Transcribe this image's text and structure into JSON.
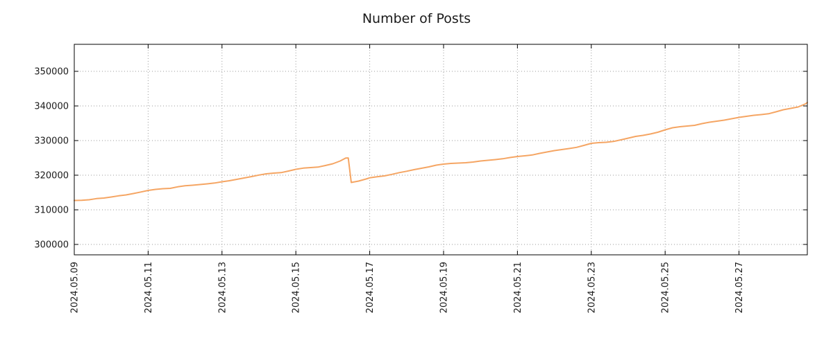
{
  "chart_data": {
    "type": "line",
    "title": "Number of Posts",
    "xlabel": "",
    "ylabel": "",
    "legend": null,
    "grid": "dotted",
    "line_color": "#f5a563",
    "axis_color": "#000000",
    "grid_color": "#9a9a9a",
    "x_unit": "days since 2024.05.09",
    "xlim": [
      0,
      19.85
    ],
    "ylim": [
      297000,
      357800
    ],
    "x_ticks": [
      {
        "pos": 0,
        "label": "2024.05.09"
      },
      {
        "pos": 2,
        "label": "2024.05.11"
      },
      {
        "pos": 4,
        "label": "2024.05.13"
      },
      {
        "pos": 6,
        "label": "2024.05.15"
      },
      {
        "pos": 8,
        "label": "2024.05.17"
      },
      {
        "pos": 10,
        "label": "2024.05.19"
      },
      {
        "pos": 12,
        "label": "2024.05.21"
      },
      {
        "pos": 14,
        "label": "2024.05.23"
      },
      {
        "pos": 16,
        "label": "2024.05.25"
      },
      {
        "pos": 18,
        "label": "2024.05.27"
      }
    ],
    "y_ticks": [
      300000,
      310000,
      320000,
      330000,
      340000,
      350000
    ],
    "points": [
      [
        0.0,
        312700
      ],
      [
        0.2,
        312750
      ],
      [
        0.4,
        312900
      ],
      [
        0.6,
        313250
      ],
      [
        0.8,
        313400
      ],
      [
        1.0,
        313700
      ],
      [
        1.2,
        314050
      ],
      [
        1.4,
        314300
      ],
      [
        1.6,
        314700
      ],
      [
        1.8,
        315150
      ],
      [
        2.0,
        315600
      ],
      [
        2.2,
        315900
      ],
      [
        2.4,
        316100
      ],
      [
        2.6,
        316200
      ],
      [
        2.8,
        316650
      ],
      [
        3.0,
        316950
      ],
      [
        3.2,
        317100
      ],
      [
        3.4,
        317300
      ],
      [
        3.6,
        317500
      ],
      [
        3.8,
        317750
      ],
      [
        4.0,
        318100
      ],
      [
        4.2,
        318400
      ],
      [
        4.4,
        318800
      ],
      [
        4.6,
        319200
      ],
      [
        4.8,
        319600
      ],
      [
        5.0,
        320050
      ],
      [
        5.2,
        320400
      ],
      [
        5.4,
        320600
      ],
      [
        5.6,
        320750
      ],
      [
        5.8,
        321200
      ],
      [
        6.0,
        321700
      ],
      [
        6.2,
        322050
      ],
      [
        6.4,
        322200
      ],
      [
        6.6,
        322350
      ],
      [
        6.8,
        322800
      ],
      [
        7.0,
        323300
      ],
      [
        7.2,
        324100
      ],
      [
        7.35,
        324950
      ],
      [
        7.42,
        324980
      ],
      [
        7.5,
        317900
      ],
      [
        7.7,
        318300
      ],
      [
        7.9,
        318900
      ],
      [
        8.0,
        319250
      ],
      [
        8.2,
        319550
      ],
      [
        8.4,
        319800
      ],
      [
        8.6,
        320250
      ],
      [
        8.8,
        320750
      ],
      [
        9.0,
        321150
      ],
      [
        9.2,
        321600
      ],
      [
        9.4,
        322000
      ],
      [
        9.6,
        322400
      ],
      [
        9.8,
        322900
      ],
      [
        10.0,
        323200
      ],
      [
        10.2,
        323400
      ],
      [
        10.4,
        323500
      ],
      [
        10.6,
        323600
      ],
      [
        10.8,
        323800
      ],
      [
        11.0,
        324100
      ],
      [
        11.2,
        324300
      ],
      [
        11.4,
        324500
      ],
      [
        11.6,
        324750
      ],
      [
        11.8,
        325100
      ],
      [
        12.0,
        325400
      ],
      [
        12.2,
        325600
      ],
      [
        12.4,
        325850
      ],
      [
        12.6,
        326300
      ],
      [
        12.8,
        326700
      ],
      [
        13.0,
        327100
      ],
      [
        13.2,
        327400
      ],
      [
        13.4,
        327700
      ],
      [
        13.6,
        328050
      ],
      [
        13.8,
        328600
      ],
      [
        14.0,
        329200
      ],
      [
        14.2,
        329400
      ],
      [
        14.4,
        329500
      ],
      [
        14.6,
        329750
      ],
      [
        14.8,
        330200
      ],
      [
        15.0,
        330700
      ],
      [
        15.2,
        331200
      ],
      [
        15.4,
        331500
      ],
      [
        15.6,
        331900
      ],
      [
        15.8,
        332400
      ],
      [
        16.0,
        333100
      ],
      [
        16.2,
        333700
      ],
      [
        16.4,
        334000
      ],
      [
        16.6,
        334200
      ],
      [
        16.8,
        334400
      ],
      [
        17.0,
        334900
      ],
      [
        17.2,
        335300
      ],
      [
        17.4,
        335600
      ],
      [
        17.6,
        335900
      ],
      [
        17.8,
        336300
      ],
      [
        18.0,
        336700
      ],
      [
        18.2,
        337000
      ],
      [
        18.4,
        337300
      ],
      [
        18.6,
        337500
      ],
      [
        18.8,
        337750
      ],
      [
        19.0,
        338300
      ],
      [
        19.2,
        338900
      ],
      [
        19.4,
        339300
      ],
      [
        19.6,
        339700
      ],
      [
        19.8,
        340600
      ],
      [
        19.85,
        341000
      ]
    ]
  }
}
